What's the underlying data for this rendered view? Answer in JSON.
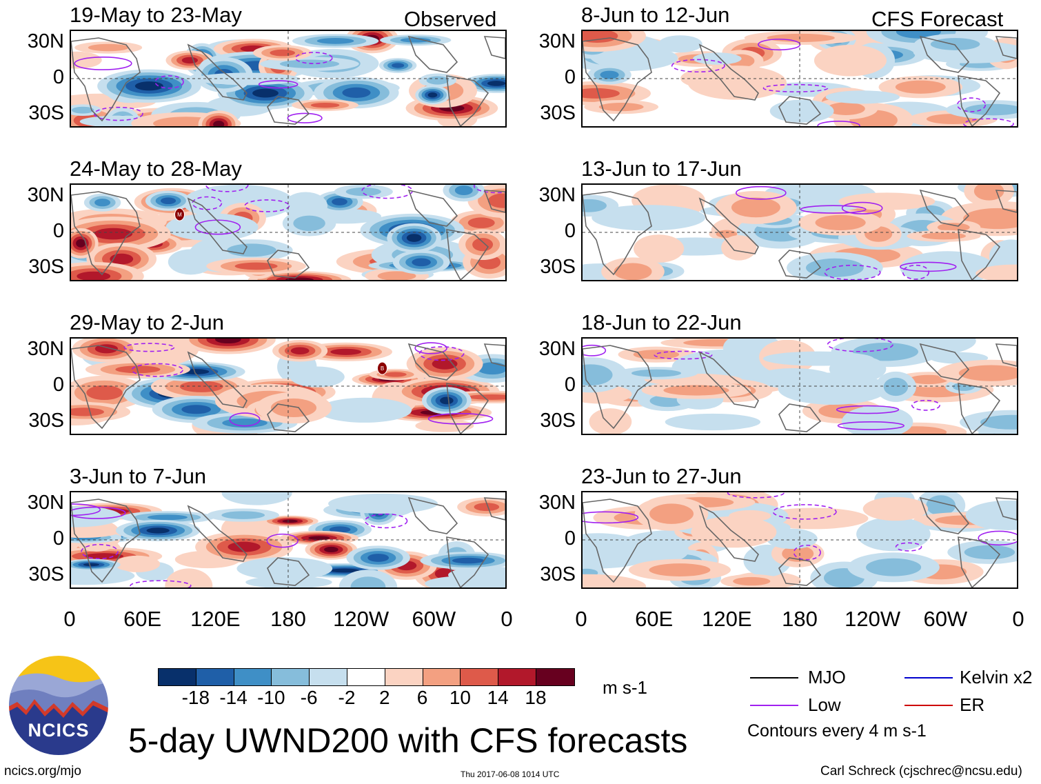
{
  "chart_data": {
    "type": "heatmap",
    "title": "5-day UWND200 with CFS forecasts",
    "variable": "200-hPa zonal wind anomaly",
    "units": "m s-1",
    "observed_label": "Observed",
    "forecast_label": "CFS Forecast",
    "observed_panels": [
      "19-May to 23-May",
      "24-May to 28-May",
      "29-May to 2-Jun",
      "3-Jun to 7-Jun"
    ],
    "forecast_panels": [
      "8-Jun to 12-Jun",
      "13-Jun to 17-Jun",
      "18-Jun to 22-Jun",
      "23-Jun to 27-Jun"
    ],
    "x_ticks": [
      "0",
      "60E",
      "120E",
      "180",
      "120W",
      "60W",
      "0"
    ],
    "y_ticks": [
      "30N",
      "0",
      "30S"
    ],
    "colorbar": {
      "ticks": [
        "-18",
        "-14",
        "-10",
        "-6",
        "-2",
        "2",
        "6",
        "10",
        "14",
        "18"
      ],
      "colors": [
        "#08306b",
        "#1f5fa8",
        "#3f8fc6",
        "#86bddb",
        "#c6dfee",
        "#ffffff",
        "#fbd3c2",
        "#f3a081",
        "#de5a4a",
        "#b2182b",
        "#67001f"
      ]
    },
    "contour_note": "Contours every 4 m s-1",
    "legend": [
      {
        "label": "MJO",
        "color": "#000000"
      },
      {
        "label": "Low",
        "color": "#a020f0"
      },
      {
        "label": "Kelvin x2",
        "color": "#0000cd"
      },
      {
        "label": "ER",
        "color": "#cd0000"
      }
    ],
    "markers": [
      {
        "panel": "24-May to 28-May",
        "label": "M",
        "lon": 90,
        "lat": 15
      },
      {
        "panel": "29-May to 2-Jun",
        "label": "B",
        "lon": 258,
        "lat": 15
      }
    ]
  },
  "branding": {
    "logo_text": "NCICS",
    "url": "ncics.org/mjo",
    "timestamp": "Thu 2017-06-08 1014 UTC",
    "author": "Carl Schreck (cjschrec@ncsu.edu)"
  }
}
